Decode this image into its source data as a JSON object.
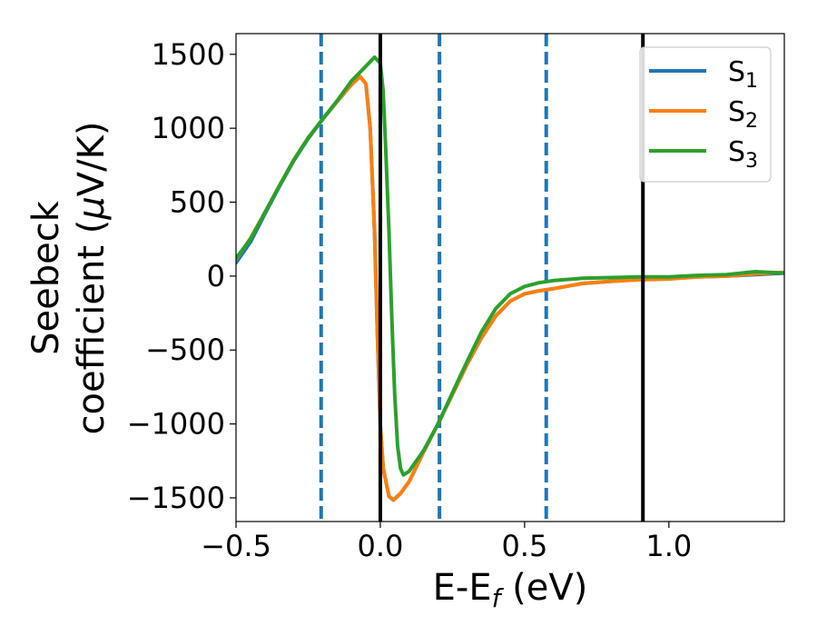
{
  "chart_data": {
    "type": "line",
    "xlabel": "E-E",
    "xlabel_sub": "f",
    "xlabel_unit": " (eV)",
    "ylabel_line1": "Seebeck",
    "ylabel_line2_pre": "coefficient  (",
    "ylabel_line2_mu": "μ",
    "ylabel_line2_post": "V/K)",
    "xlim": [
      -0.5,
      1.4
    ],
    "ylim": [
      -1660,
      1640
    ],
    "xticks": [
      {
        "value": -0.5,
        "label": "−0.5"
      },
      {
        "value": 0.0,
        "label": "0.0"
      },
      {
        "value": 0.5,
        "label": "0.5"
      },
      {
        "value": 1.0,
        "label": "1.0"
      }
    ],
    "yticks": [
      {
        "value": 1500,
        "label": "1500"
      },
      {
        "value": 1000,
        "label": "1000"
      },
      {
        "value": 500,
        "label": "500"
      },
      {
        "value": 0,
        "label": "0"
      },
      {
        "value": -500,
        "label": "−500"
      },
      {
        "value": -1000,
        "label": "−1000"
      },
      {
        "value": -1500,
        "label": "−1500"
      }
    ],
    "grid": false,
    "legend_position": "top-right",
    "vlines_dashed": [
      -0.205,
      0.205,
      0.575
    ],
    "vlines_solid": [
      0.0,
      0.91
    ],
    "series": [
      {
        "name": "S",
        "name_sub": "1",
        "color": "#1f77b4",
        "points": [
          [
            -0.5,
            90
          ],
          [
            -0.45,
            230
          ],
          [
            -0.4,
            420
          ],
          [
            -0.35,
            605
          ],
          [
            -0.3,
            780
          ],
          [
            -0.25,
            930
          ],
          [
            -0.2,
            1060
          ],
          [
            -0.15,
            1180
          ],
          [
            -0.1,
            1295
          ],
          [
            -0.07,
            1350
          ],
          [
            -0.05,
            1300
          ],
          [
            -0.035,
            1000
          ],
          [
            -0.02,
            300
          ],
          [
            -0.01,
            -400
          ],
          [
            0.0,
            -1000
          ],
          [
            0.01,
            -1300
          ],
          [
            0.03,
            -1490
          ],
          [
            0.045,
            -1515
          ],
          [
            0.07,
            -1470
          ],
          [
            0.1,
            -1390
          ],
          [
            0.15,
            -1190
          ],
          [
            0.2,
            -1000
          ],
          [
            0.25,
            -800
          ],
          [
            0.3,
            -600
          ],
          [
            0.35,
            -420
          ],
          [
            0.4,
            -270
          ],
          [
            0.45,
            -170
          ],
          [
            0.5,
            -120
          ],
          [
            0.55,
            -100
          ],
          [
            0.6,
            -85
          ],
          [
            0.7,
            -50
          ],
          [
            0.8,
            -35
          ],
          [
            0.9,
            -20
          ],
          [
            1.0,
            -18
          ],
          [
            1.1,
            -5
          ],
          [
            1.2,
            0
          ],
          [
            1.3,
            10
          ],
          [
            1.4,
            20
          ]
        ]
      },
      {
        "name": "S",
        "name_sub": "2",
        "color": "#ff7f0e",
        "points": [
          [
            -0.5,
            115
          ],
          [
            -0.45,
            255
          ],
          [
            -0.4,
            430
          ],
          [
            -0.35,
            610
          ],
          [
            -0.3,
            785
          ],
          [
            -0.25,
            935
          ],
          [
            -0.2,
            1062
          ],
          [
            -0.15,
            1180
          ],
          [
            -0.1,
            1295
          ],
          [
            -0.07,
            1350
          ],
          [
            -0.05,
            1300
          ],
          [
            -0.035,
            1000
          ],
          [
            -0.02,
            300
          ],
          [
            -0.01,
            -400
          ],
          [
            0.0,
            -1000
          ],
          [
            0.01,
            -1300
          ],
          [
            0.03,
            -1490
          ],
          [
            0.045,
            -1515
          ],
          [
            0.07,
            -1470
          ],
          [
            0.1,
            -1390
          ],
          [
            0.15,
            -1190
          ],
          [
            0.2,
            -1000
          ],
          [
            0.25,
            -800
          ],
          [
            0.3,
            -600
          ],
          [
            0.35,
            -420
          ],
          [
            0.4,
            -270
          ],
          [
            0.45,
            -170
          ],
          [
            0.5,
            -120
          ],
          [
            0.55,
            -100
          ],
          [
            0.6,
            -85
          ],
          [
            0.7,
            -50
          ],
          [
            0.8,
            -35
          ],
          [
            0.9,
            -25
          ],
          [
            1.0,
            -20
          ],
          [
            1.1,
            -5
          ],
          [
            1.2,
            0
          ],
          [
            1.3,
            15
          ],
          [
            1.4,
            25
          ]
        ]
      },
      {
        "name": "S",
        "name_sub": "3",
        "color": "#2ca02c",
        "points": [
          [
            -0.5,
            120
          ],
          [
            -0.45,
            250
          ],
          [
            -0.4,
            430
          ],
          [
            -0.35,
            610
          ],
          [
            -0.3,
            785
          ],
          [
            -0.25,
            935
          ],
          [
            -0.2,
            1062
          ],
          [
            -0.15,
            1185
          ],
          [
            -0.1,
            1320
          ],
          [
            -0.05,
            1420
          ],
          [
            -0.02,
            1480
          ],
          [
            0.0,
            1440
          ],
          [
            0.01,
            1250
          ],
          [
            0.02,
            800
          ],
          [
            0.03,
            300
          ],
          [
            0.04,
            -300
          ],
          [
            0.05,
            -800
          ],
          [
            0.06,
            -1150
          ],
          [
            0.07,
            -1300
          ],
          [
            0.08,
            -1345
          ],
          [
            0.1,
            -1320
          ],
          [
            0.15,
            -1180
          ],
          [
            0.2,
            -1000
          ],
          [
            0.25,
            -790
          ],
          [
            0.3,
            -580
          ],
          [
            0.35,
            -380
          ],
          [
            0.4,
            -220
          ],
          [
            0.45,
            -120
          ],
          [
            0.5,
            -70
          ],
          [
            0.55,
            -45
          ],
          [
            0.6,
            -30
          ],
          [
            0.7,
            -15
          ],
          [
            0.8,
            -10
          ],
          [
            0.9,
            -5
          ],
          [
            1.0,
            -5
          ],
          [
            1.1,
            5
          ],
          [
            1.2,
            10
          ],
          [
            1.3,
            30
          ],
          [
            1.4,
            20
          ]
        ]
      }
    ]
  }
}
